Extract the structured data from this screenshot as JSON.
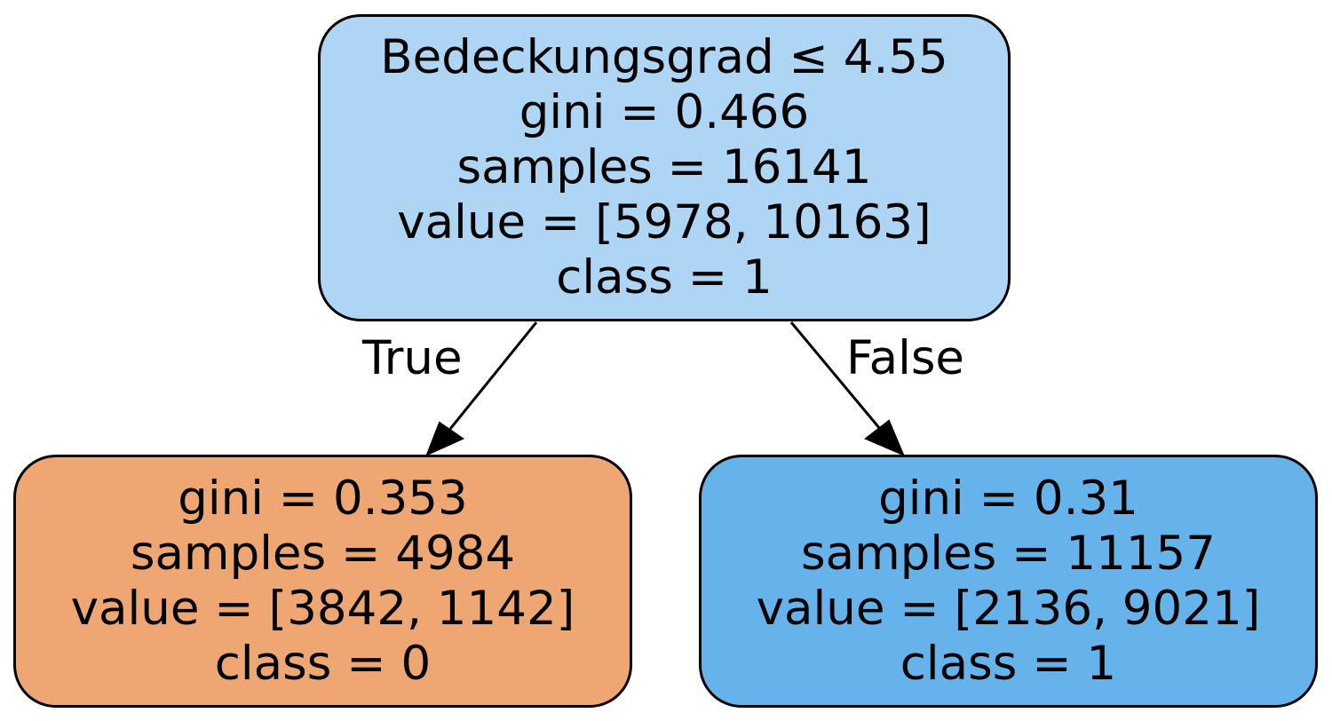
{
  "root": {
    "split": "Bedeckungsgrad ≤ 4.55",
    "gini": "gini = 0.466",
    "samples": "samples = 16141",
    "value": "value = [5978, 10163]",
    "class": "class = 1",
    "fill": "#aed5f4"
  },
  "left": {
    "gini": "gini = 0.353",
    "samples": "samples = 4984",
    "value": "value = [3842, 1142]",
    "class": "class = 0",
    "fill": "#eea673"
  },
  "right": {
    "gini": "gini = 0.31",
    "samples": "samples = 11157",
    "value": "value = [2136, 9021]",
    "class": "class = 1",
    "fill": "#66b3eb"
  },
  "edges": {
    "true_label": "True",
    "false_label": "False"
  }
}
